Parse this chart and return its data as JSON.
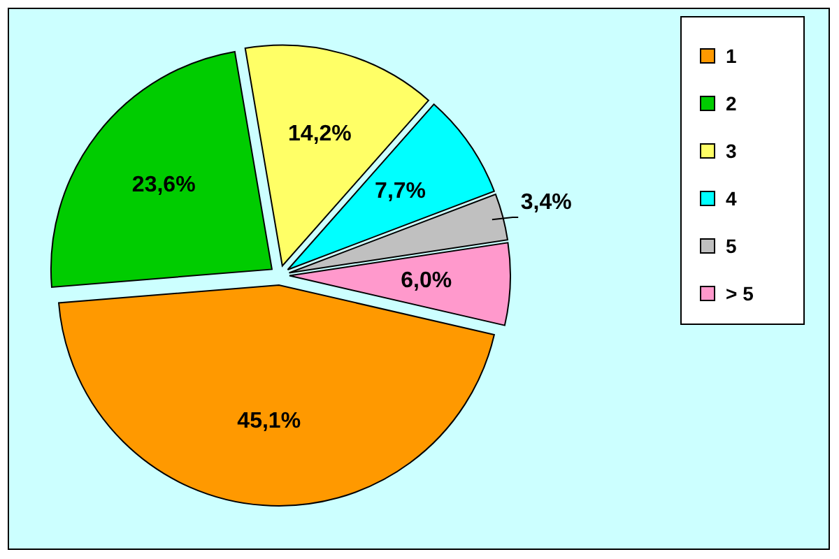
{
  "chart_data": {
    "type": "pie",
    "categories": [
      "1",
      "2",
      "3",
      "4",
      "5",
      "> 5"
    ],
    "values": [
      45.1,
      23.6,
      14.2,
      7.7,
      3.4,
      6.0
    ],
    "colors": [
      "#ff9900",
      "#00cc00",
      "#ffff66",
      "#00ffff",
      "#c0c0c0",
      "#ff99cc"
    ],
    "value_labels": [
      "45,1%",
      "23,6%",
      "14,2%",
      "7,7%",
      "3,4%",
      "6,0%"
    ],
    "legend": "right"
  }
}
